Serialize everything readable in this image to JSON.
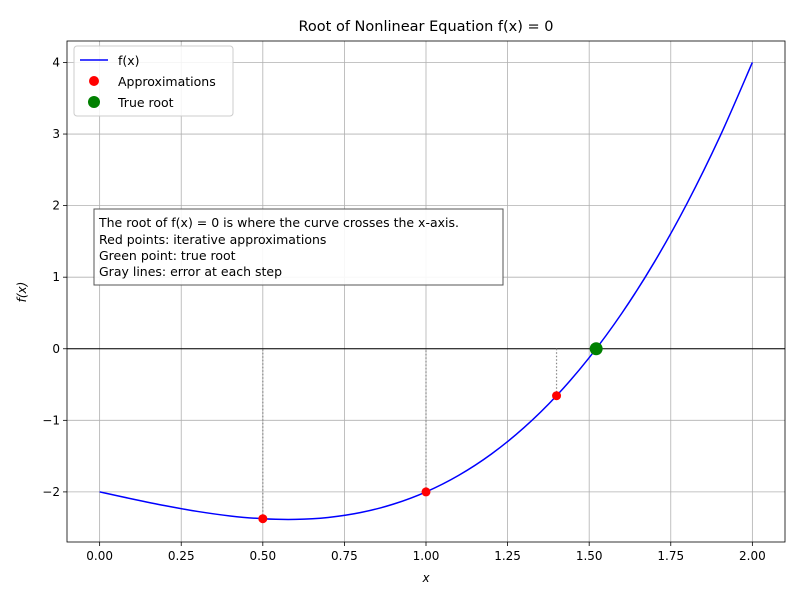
{
  "chart_data": {
    "type": "line",
    "title": "Root of Nonlinear Equation f(x) = 0",
    "xlabel": "x",
    "ylabel": "f(x)",
    "xlim": [
      -0.1,
      2.1
    ],
    "ylim": [
      -2.7,
      4.3
    ],
    "x_ticks": [
      0.0,
      0.25,
      0.5,
      0.75,
      1.0,
      1.25,
      1.5,
      1.75,
      2.0
    ],
    "x_tick_labels": [
      "0.00",
      "0.25",
      "0.50",
      "0.75",
      "1.00",
      "1.25",
      "1.50",
      "1.75",
      "2.00"
    ],
    "y_ticks": [
      -2,
      -1,
      0,
      1,
      2,
      3,
      4
    ],
    "y_tick_labels": [
      "−2",
      "−1",
      "0",
      "1",
      "2",
      "3",
      "4"
    ],
    "grid": true,
    "legend_position": "top-left",
    "curve": {
      "name": "f(x)",
      "color": "#0000ff",
      "x": [
        0.0,
        0.1,
        0.2,
        0.3,
        0.4,
        0.5,
        0.6,
        0.7,
        0.8,
        0.9,
        1.0,
        1.1,
        1.2,
        1.3,
        1.4,
        1.5,
        1.6,
        1.7,
        1.8,
        1.9,
        2.0
      ],
      "y": [
        -2.0,
        -2.099,
        -2.192,
        -2.273,
        -2.336,
        -2.375,
        -2.384,
        -2.357,
        -2.288,
        -2.171,
        -2.0,
        -1.769,
        -1.472,
        -1.103,
        -0.656,
        -0.125,
        0.496,
        1.213,
        2.032,
        2.959,
        4.0
      ]
    },
    "approximations": {
      "name": "Approximations",
      "color": "#ff0000",
      "x": [
        0.5,
        1.0,
        1.4
      ],
      "y": [
        -2.375,
        -2.0,
        -0.656
      ]
    },
    "true_root": {
      "name": "True root",
      "color": "#008000",
      "x": 1.5214,
      "y": 0.0
    },
    "annotation": {
      "lines": [
        "The root of f(x) = 0 is where the curve crosses the x-axis.",
        "Red points: iterative approximations",
        "Green point: true root",
        "Gray lines: error at each step"
      ]
    }
  }
}
